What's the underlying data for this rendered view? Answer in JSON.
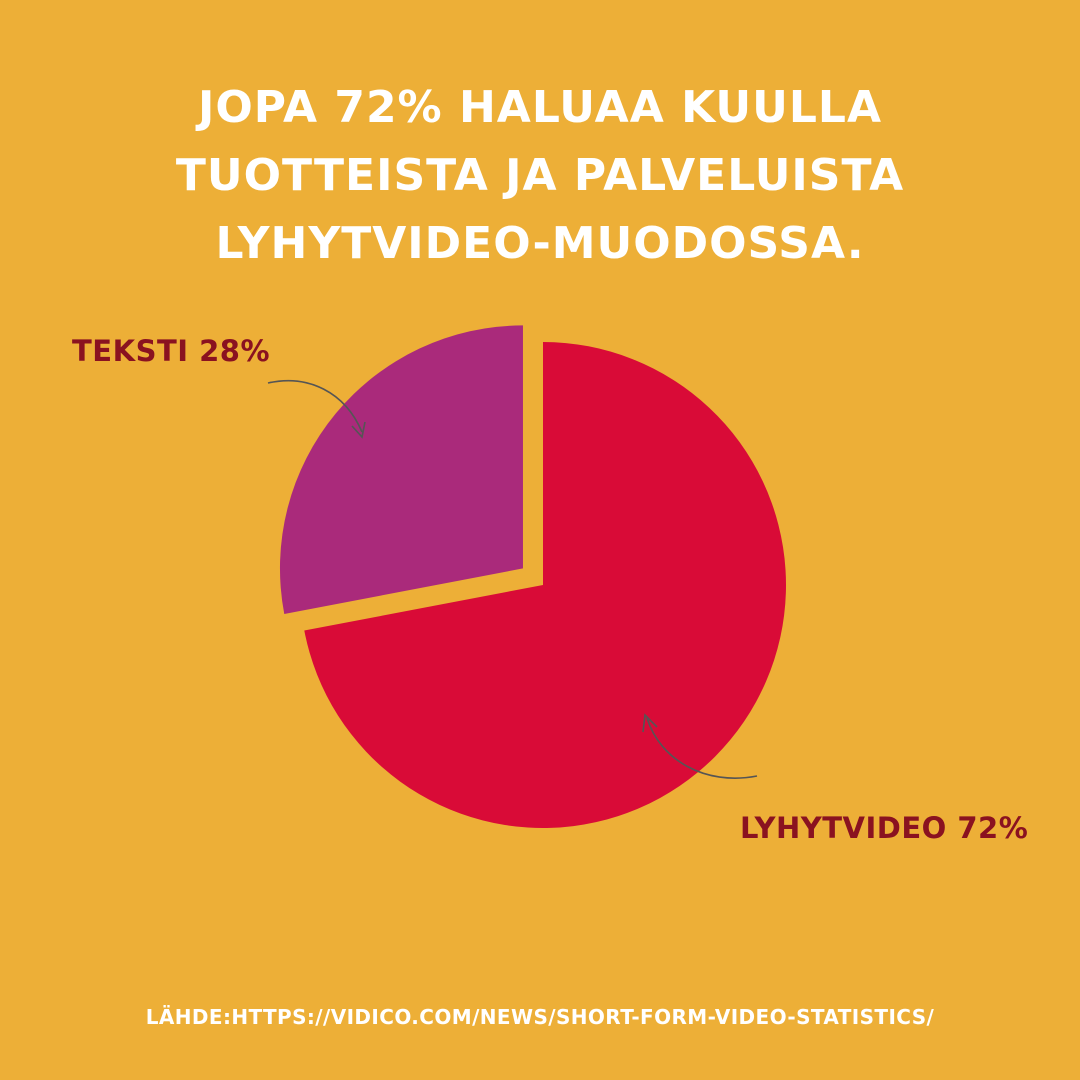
{
  "title_lines": [
    "JOPA 72% HALUAA KUULLA",
    "TUOTTEISTA JA PALVELUISTA",
    "LYHYTVIDEO-MUODOSSA."
  ],
  "source": "LÄHDE:HTTPS://VIDICO.COM/NEWS/SHORT-FORM-VIDEO-STATISTICS/",
  "colors": {
    "background": "#EDAF37",
    "video_slice": "#D90B37",
    "text_slice": "#AA2A7B",
    "label_text": "#8A1220",
    "title_text": "#FFFFFF",
    "arrow": "#555555"
  },
  "chart_data": {
    "type": "pie",
    "title": "JOPA 72% HALUAA KUULLA TUOTTEISTA JA PALVELUISTA LYHYTVIDEO-MUODOSSA.",
    "slices": [
      {
        "label": "LYHYTVIDEO",
        "value": 72,
        "display": "LYHYTVIDEO 72%",
        "color": "#D90B37",
        "exploded": false
      },
      {
        "label": "TEKSTI",
        "value": 28,
        "display": "TEKSTI 28%",
        "color": "#AA2A7B",
        "exploded": true
      }
    ],
    "legend": "none"
  }
}
